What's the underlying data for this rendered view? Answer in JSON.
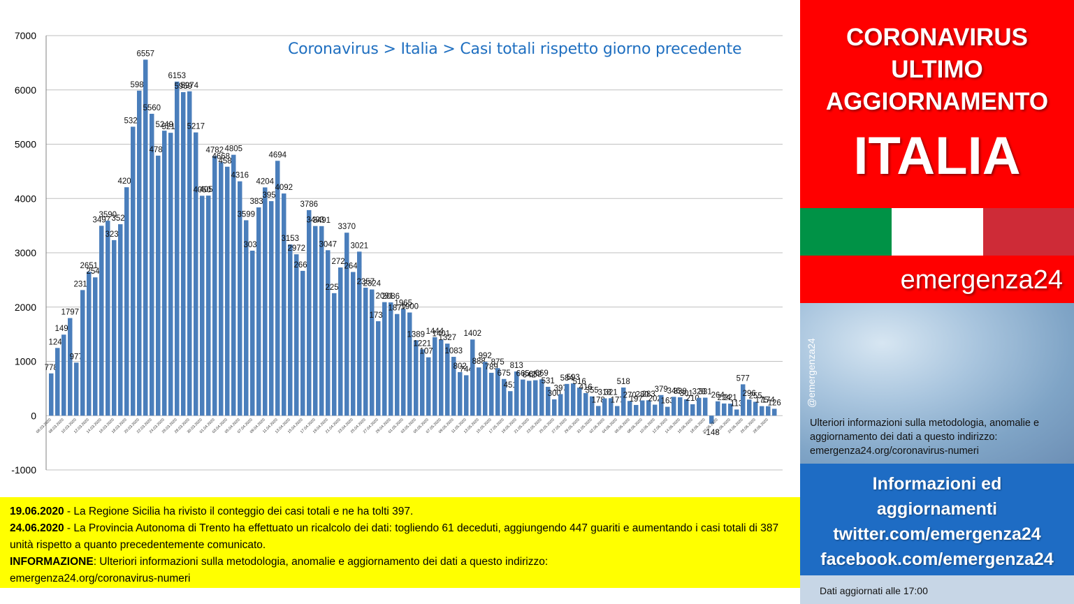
{
  "chart_data": {
    "type": "bar",
    "title": "Coronavirus > Italia > Casi totali rispetto giorno precedente",
    "ylim": [
      -1000,
      7000
    ],
    "yticks": [
      -1000,
      0,
      1000,
      2000,
      3000,
      4000,
      5000,
      6000,
      7000
    ],
    "grid": true,
    "bar_color": "#4a7ebb",
    "x_tick_labels": [
      "06.03.2020",
      "08.03.2020",
      "10.03.2020",
      "12.03.2020",
      "14.03.2020",
      "16.03.2020",
      "18.03.2020",
      "20.03.2020",
      "22.03.2020",
      "24.03.2020",
      "26.03.2020",
      "28.03.2020",
      "30.03.2020",
      "01.04.2020",
      "03.04.2020",
      "05.04.2020",
      "07.04.2020",
      "09.04.2020",
      "11.04.2020",
      "13.04.2020",
      "15.04.2020",
      "17.04.2020",
      "19.04.2020",
      "21.04.2020",
      "23.04.2020",
      "25.04.2020",
      "27.04.2020",
      "29.04.2020",
      "01.05.2020",
      "03.05.2020",
      "05.05.2020",
      "07.05.2020",
      "09.05.2020",
      "11.05.2020",
      "13.05.2020",
      "15.05.2020",
      "17.05.2020",
      "19.05.2020",
      "21.05.2020",
      "23.05.2020",
      "25.05.2020",
      "27.05.2020",
      "29.05.2020",
      "31.05.2020",
      "02.06.2020",
      "04.06.2020",
      "06.06.2020",
      "08.06.2020",
      "10.06.2020",
      "12.06.2020",
      "14.06.2020",
      "16.06.2020",
      "18.06.2020",
      "20.06.2020",
      "22.06.2020",
      "24.06.2020",
      "26.06.2020",
      "28.06.2020"
    ],
    "values": [
      778,
      1247,
      1492,
      1797,
      977,
      2313,
      2651,
      2547,
      3497,
      3590,
      3233,
      3526,
      4207,
      5322,
      5986,
      6557,
      5560,
      4789,
      5249,
      5210,
      6153,
      5959,
      5974,
      5217,
      4050,
      4053,
      4782,
      4668,
      4585,
      4805,
      4316,
      3599,
      3039,
      3836,
      4204,
      3951,
      4694,
      4092,
      3153,
      2972,
      2667,
      3786,
      3493,
      3491,
      3047,
      2256,
      2729,
      3370,
      2646,
      3021,
      2357,
      2324,
      1739,
      2091,
      2086,
      1872,
      1965,
      1900,
      1389,
      1221,
      1075,
      1444,
      1401,
      1327,
      1083,
      802,
      744,
      1402,
      888,
      992,
      789,
      875,
      675,
      451,
      813,
      665,
      642,
      652,
      669,
      531,
      300,
      397,
      584,
      593,
      516,
      416,
      355,
      178,
      318,
      321,
      177,
      518,
      270,
      197,
      280,
      283,
      202,
      379,
      163,
      346,
      338,
      301,
      210,
      328,
      331,
      -148,
      264,
      224,
      221,
      113,
      577,
      296,
      255,
      175,
      174,
      126
    ]
  },
  "notes": {
    "line1_date": "19.06.2020",
    "line1_text": " - La Regione Sicilia ha rivisto il conteggio dei casi totali e ne ha tolti 397.",
    "line2_date": "24.06.2020",
    "line2_text": " - La Provincia Autonoma di Trento ha effettuato un ricalcolo dei dati: togliendo 61 deceduti, aggiungendo 447 guariti e aumentando i casi totali di 387 unità rispetto a quanto precedentemente comunicato.",
    "line3_label": "INFORMAZIONE",
    "line3_text": ": Ulteriori informazioni sulla metodologia, anomalie e aggiornamento dei dati a questo indirizzo:",
    "line4_text": "emergenza24.org/coronavirus-numeri"
  },
  "side": {
    "line1": "CORONAVIRUS",
    "line2": "ULTIMO",
    "line3": "AGGIORNAMENTO",
    "line4": "ITALIA",
    "brand": "emergenza24",
    "handle": "@emergenza24",
    "photo_text": "Ulteriori informazioni sulla metodologia, anomalie e aggiornamento dei dati a questo indirizzo: emergenza24.org/coronavirus-numeri",
    "blue_line1": "Informazioni ed",
    "blue_line2": "aggiornamenti",
    "blue_line3": "twitter.com/emergenza24",
    "blue_line4": "facebook.com/emergenza24",
    "footer": "Dati aggiornati alle 17:00"
  },
  "colors": {
    "red": "#ff0000",
    "blue": "#1e6cc4",
    "yellow": "#ffff00",
    "flag_green": "#009246",
    "flag_white": "#ffffff",
    "flag_red": "#ce2b37"
  }
}
